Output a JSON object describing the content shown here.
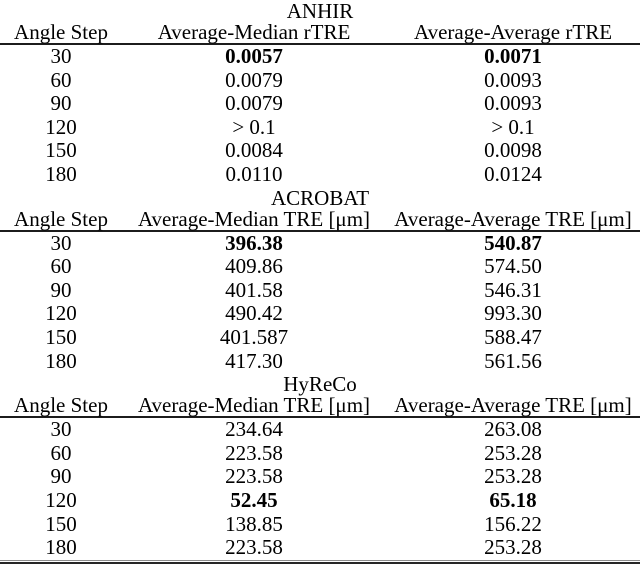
{
  "document": {
    "background": "#ffffff",
    "text_color": "#000000",
    "rule_color": "#1c1c1c"
  },
  "tables": [
    {
      "title": "ANHIR",
      "headers": {
        "angle": "Angle Step",
        "median": "Average-Median rTRE",
        "average": "Average-Average rTRE"
      },
      "bold_row_index": 0,
      "rows": [
        {
          "angle": "30",
          "median": "0.0057",
          "average": "0.0071"
        },
        {
          "angle": "60",
          "median": "0.0079",
          "average": "0.0093"
        },
        {
          "angle": "90",
          "median": "0.0079",
          "average": "0.0093"
        },
        {
          "angle": "120",
          "median": "> 0.1",
          "average": "> 0.1"
        },
        {
          "angle": "150",
          "median": "0.0084",
          "average": "0.0098"
        },
        {
          "angle": "180",
          "median": "0.0110",
          "average": "0.0124"
        }
      ]
    },
    {
      "title": "ACROBAT",
      "headers": {
        "angle": "Angle Step",
        "median": "Average-Median TRE [μm]",
        "average": "Average-Average TRE [μm]"
      },
      "bold_row_index": 0,
      "rows": [
        {
          "angle": "30",
          "median": "396.38",
          "average": "540.87"
        },
        {
          "angle": "60",
          "median": "409.86",
          "average": "574.50"
        },
        {
          "angle": "90",
          "median": "401.58",
          "average": "546.31"
        },
        {
          "angle": "120",
          "median": "490.42",
          "average": "993.30"
        },
        {
          "angle": "150",
          "median": "401.587",
          "average": "588.47"
        },
        {
          "angle": "180",
          "median": "417.30",
          "average": "561.56"
        }
      ]
    },
    {
      "title": "HyReCo",
      "headers": {
        "angle": "Angle Step",
        "median": "Average-Median TRE [μm]",
        "average": "Average-Average TRE [μm]"
      },
      "bold_row_index": 3,
      "rows": [
        {
          "angle": "30",
          "median": "234.64",
          "average": "263.08"
        },
        {
          "angle": "60",
          "median": "223.58",
          "average": "253.28"
        },
        {
          "angle": "90",
          "median": "223.58",
          "average": "253.28"
        },
        {
          "angle": "120",
          "median": "52.45",
          "average": "65.18"
        },
        {
          "angle": "150",
          "median": "138.85",
          "average": "156.22"
        },
        {
          "angle": "180",
          "median": "223.58",
          "average": "253.28"
        }
      ]
    }
  ]
}
